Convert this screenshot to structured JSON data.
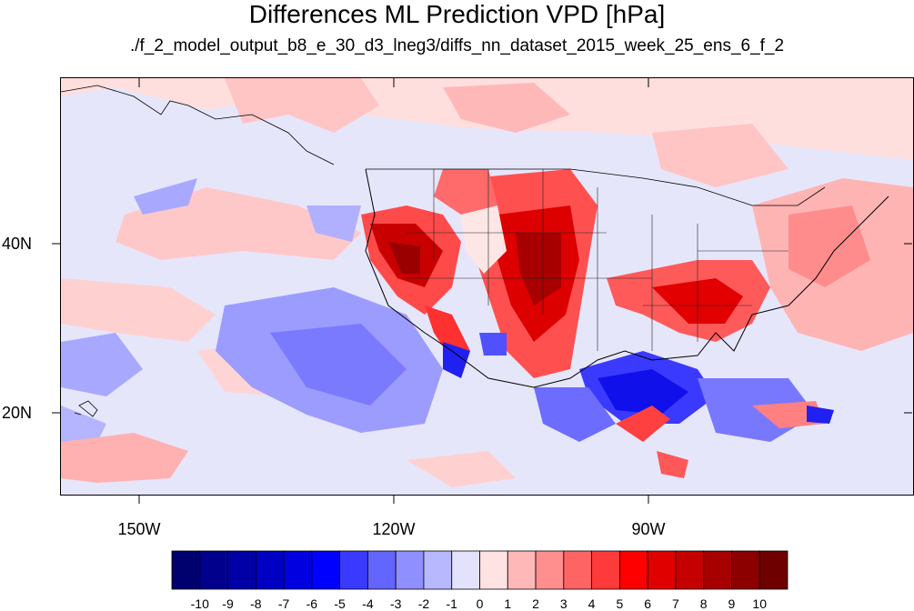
{
  "title": "Differences ML Prediction VPD [hPa]",
  "subtitle": "./f_2_model_output_b8_e_30_d3_lneg3/diffs_nn_dataset_2015_week_25_ens_6_f_2",
  "map": {
    "lat_labels": [
      "40N",
      "20N"
    ],
    "lon_labels": [
      "150W",
      "120W",
      "90W"
    ]
  },
  "colorbar": {
    "labels": [
      "-10",
      "-9",
      "-8",
      "-7",
      "-6",
      "-5",
      "-4",
      "-3",
      "-2",
      "-1",
      "0",
      "1",
      "2",
      "3",
      "4",
      "5",
      "6",
      "7",
      "8",
      "9",
      "10"
    ],
    "colors": [
      "#00006e",
      "#00008c",
      "#0000a6",
      "#0000c4",
      "#0000e0",
      "#0000ff",
      "#3a3aff",
      "#6464ff",
      "#8f8fff",
      "#b8b8ff",
      "#e2e2fc",
      "#ffe2e2",
      "#ffb8b8",
      "#ff8f8f",
      "#ff6464",
      "#ff3a3a",
      "#ff0000",
      "#e00000",
      "#c40000",
      "#a60000",
      "#8c0000",
      "#6e0000"
    ]
  }
}
